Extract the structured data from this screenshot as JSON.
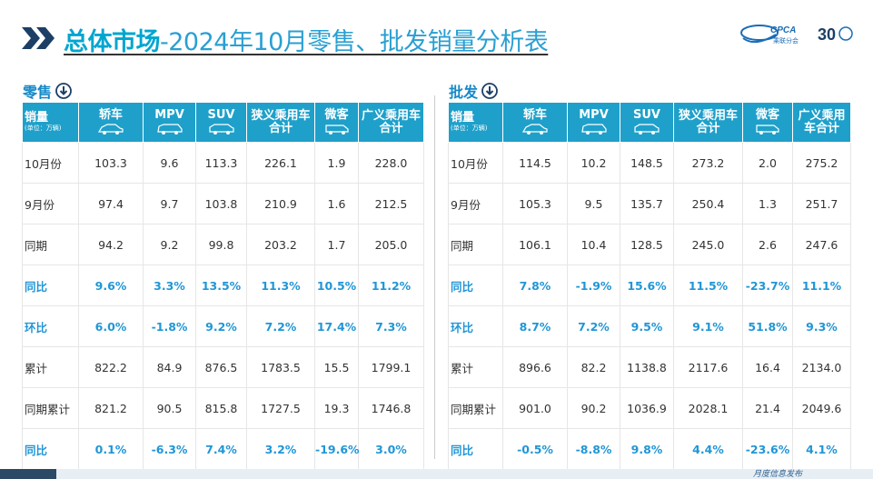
{
  "header": {
    "title_bold": "总体市场",
    "title_rest": "-2024年10月零售、批发销量分析表",
    "logo_text": "CPCA",
    "logo_sub": "乘联分会",
    "logo_anniv": "30"
  },
  "columns": {
    "first_label": "销量",
    "first_unit": "(单位：万辆)",
    "labels": [
      "轿车",
      "MPV",
      "SUV",
      "狭义乘用车合计",
      "微客",
      "广义乘用车合计"
    ]
  },
  "retail": {
    "section_label": "零售",
    "rows": [
      {
        "label": "10月份",
        "values": [
          "103.3",
          "9.6",
          "113.3",
          "226.1",
          "1.9",
          "228.0"
        ],
        "highlight": false
      },
      {
        "label": "9月份",
        "values": [
          "97.4",
          "9.7",
          "103.8",
          "210.9",
          "1.6",
          "212.5"
        ],
        "highlight": false
      },
      {
        "label": "同期",
        "values": [
          "94.2",
          "9.2",
          "99.8",
          "203.2",
          "1.7",
          "205.0"
        ],
        "highlight": false
      },
      {
        "label": "同比",
        "values": [
          "9.6%",
          "3.3%",
          "13.5%",
          "11.3%",
          "10.5%",
          "11.2%"
        ],
        "highlight": true
      },
      {
        "label": "环比",
        "values": [
          "6.0%",
          "-1.8%",
          "9.2%",
          "7.2%",
          "17.4%",
          "7.3%"
        ],
        "highlight": true
      },
      {
        "label": "累计",
        "values": [
          "822.2",
          "84.9",
          "876.5",
          "1783.5",
          "15.5",
          "1799.1"
        ],
        "highlight": false
      },
      {
        "label": "同期累计",
        "values": [
          "821.2",
          "90.5",
          "815.8",
          "1727.5",
          "19.3",
          "1746.8"
        ],
        "highlight": false
      },
      {
        "label": "同比",
        "values": [
          "0.1%",
          "-6.3%",
          "7.4%",
          "3.2%",
          "-19.6%",
          "3.0%"
        ],
        "highlight": true
      }
    ]
  },
  "wholesale": {
    "section_label": "批发",
    "rows": [
      {
        "label": "10月份",
        "values": [
          "114.5",
          "10.2",
          "148.5",
          "273.2",
          "2.0",
          "275.2"
        ],
        "highlight": false
      },
      {
        "label": "9月份",
        "values": [
          "105.3",
          "9.5",
          "135.7",
          "250.4",
          "1.3",
          "251.7"
        ],
        "highlight": false
      },
      {
        "label": "同期",
        "values": [
          "106.1",
          "10.4",
          "128.5",
          "245.0",
          "2.6",
          "247.6"
        ],
        "highlight": false
      },
      {
        "label": "同比",
        "values": [
          "7.8%",
          "-1.9%",
          "15.6%",
          "11.5%",
          "-23.7%",
          "11.1%"
        ],
        "highlight": true
      },
      {
        "label": "环比",
        "values": [
          "8.7%",
          "7.2%",
          "9.5%",
          "9.1%",
          "51.8%",
          "9.3%"
        ],
        "highlight": true
      },
      {
        "label": "累计",
        "values": [
          "896.6",
          "82.2",
          "1138.8",
          "2117.6",
          "16.4",
          "2134.0"
        ],
        "highlight": false
      },
      {
        "label": "同期累计",
        "values": [
          "901.0",
          "90.2",
          "1036.9",
          "2028.1",
          "21.4",
          "2049.6"
        ],
        "highlight": false
      },
      {
        "label": "同比",
        "values": [
          "-0.5%",
          "-8.8%",
          "9.8%",
          "4.4%",
          "-23.6%",
          "4.1%"
        ],
        "highlight": true
      }
    ]
  },
  "footer": {
    "text": "月度信息发布"
  },
  "colors": {
    "accent": "#1fa0ca",
    "highlight_text": "#2196d6",
    "title_bold": "#00a6d0"
  }
}
